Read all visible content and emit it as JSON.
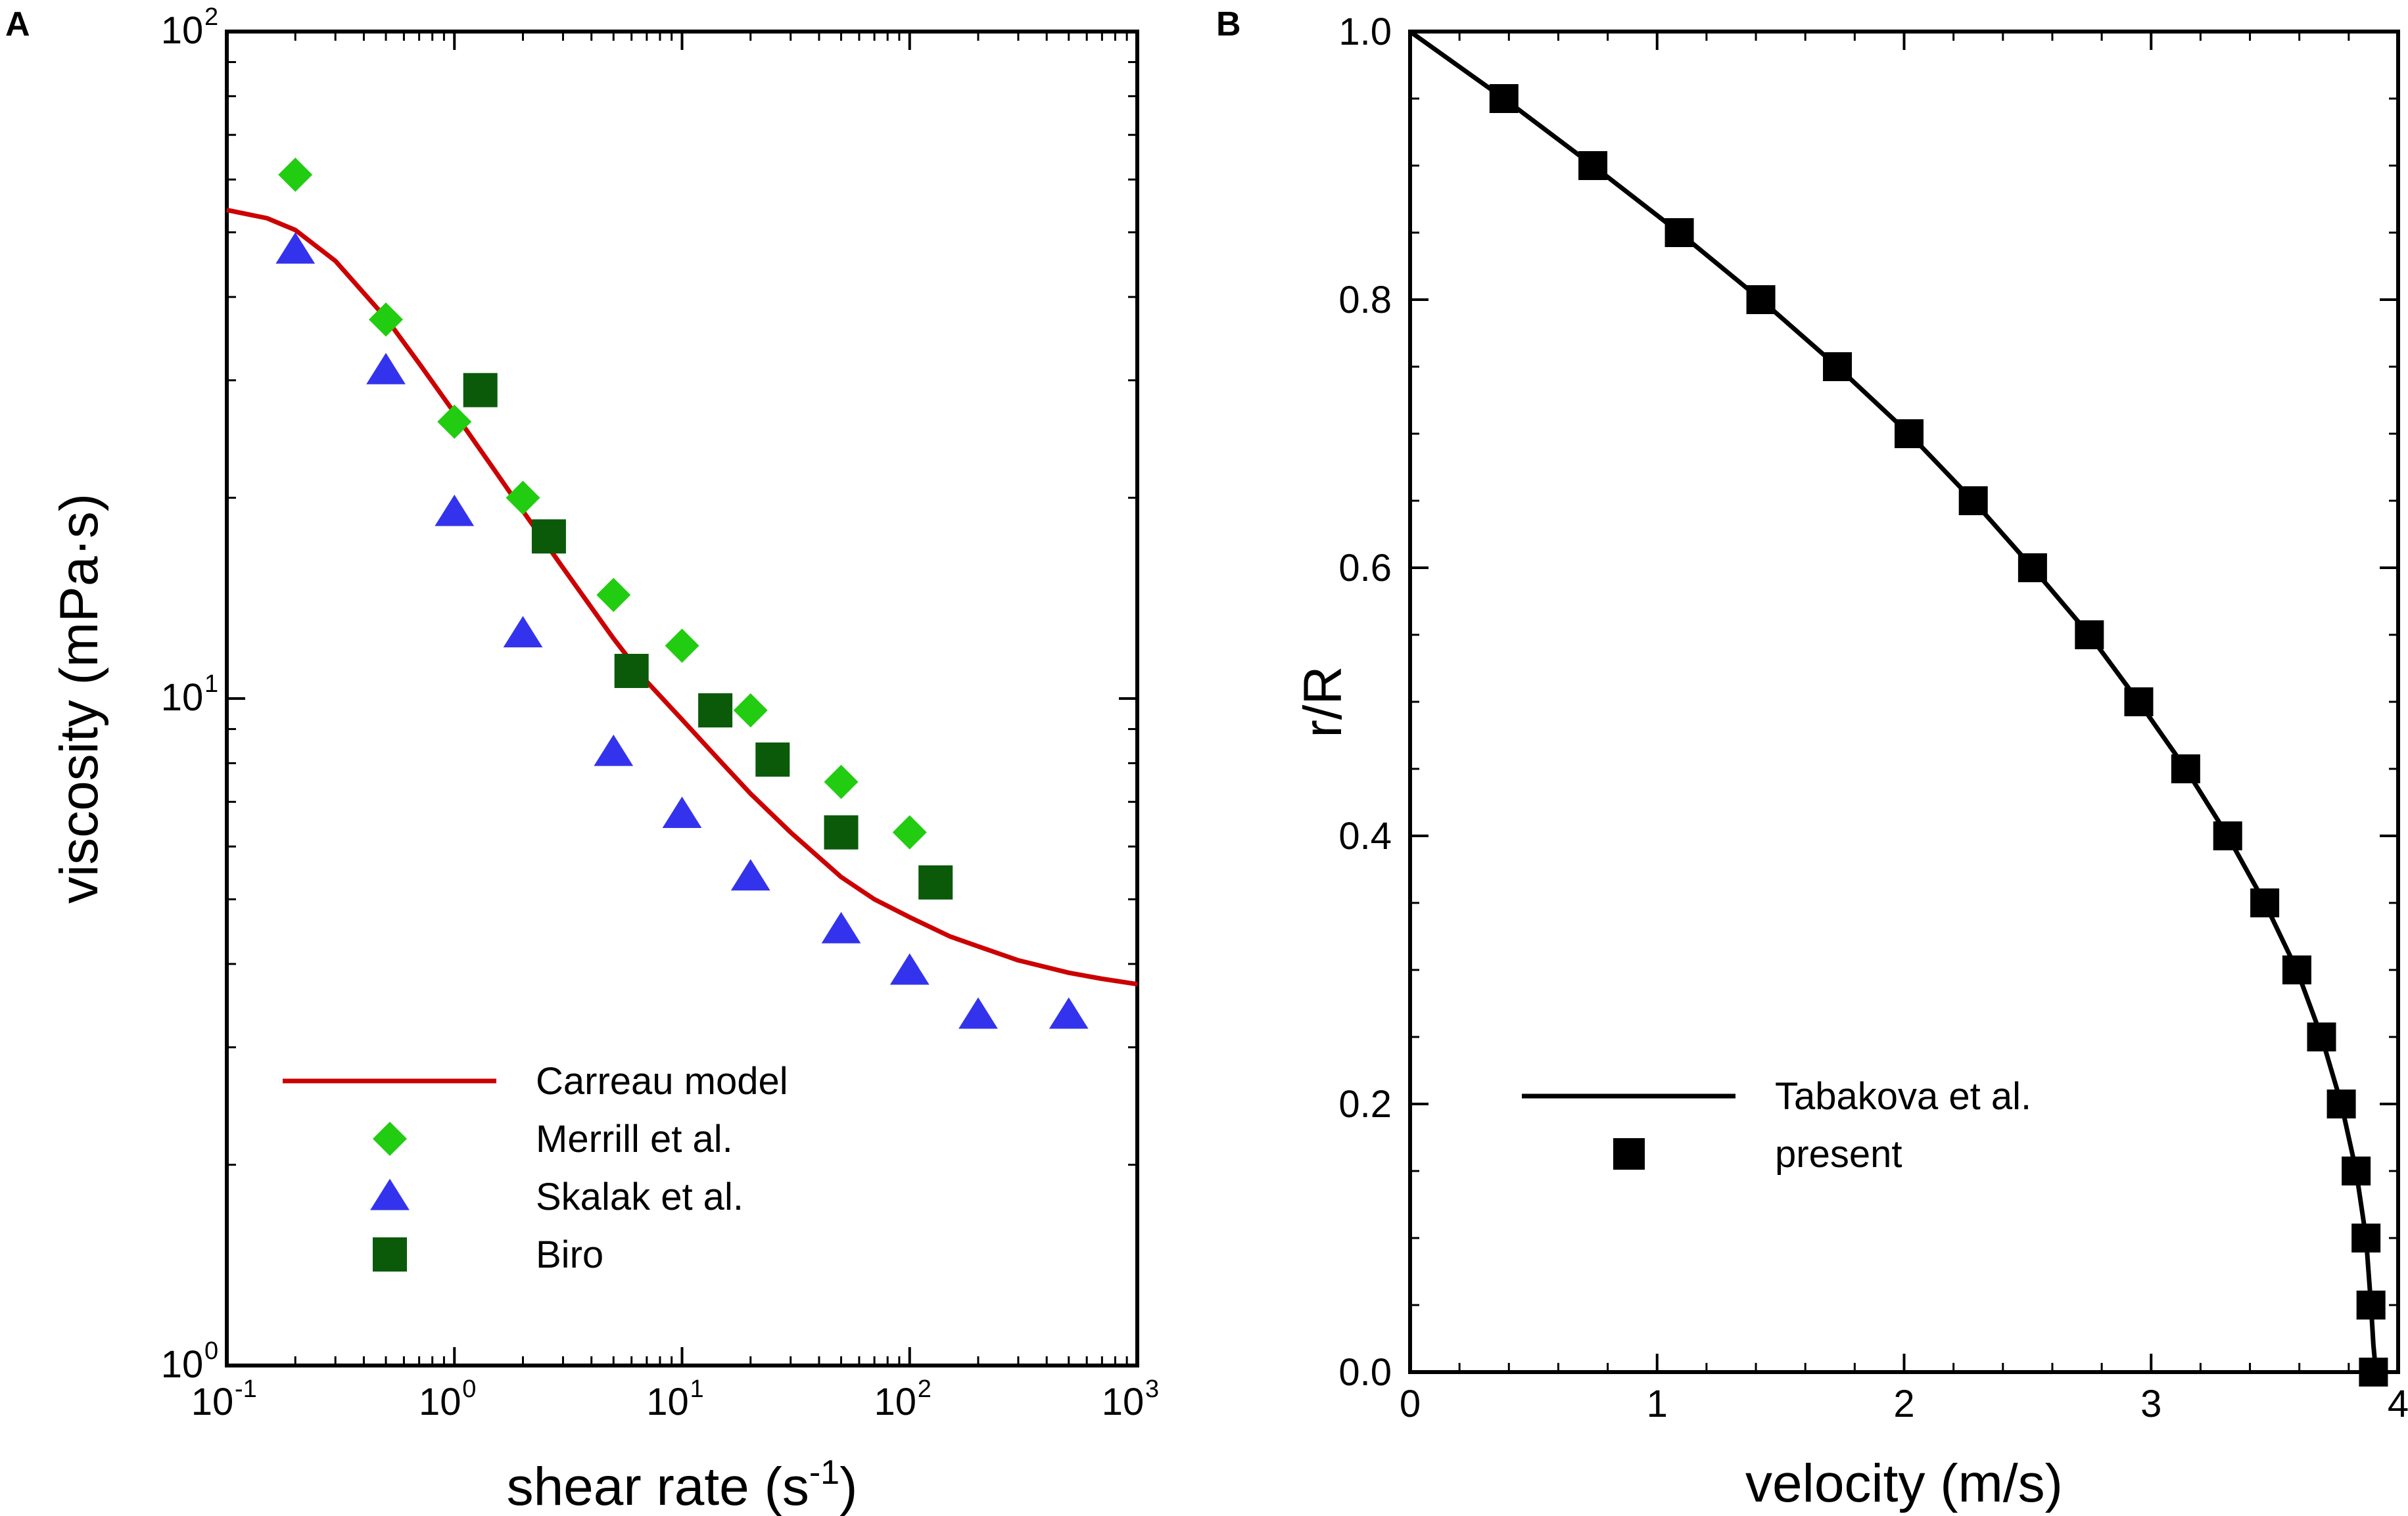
{
  "panels": {
    "a_label": "A",
    "b_label": "B"
  },
  "chart_data": [
    {
      "type": "scatter",
      "panel": "A",
      "xscale": "log",
      "yscale": "log",
      "xlim": [
        0.1,
        1000
      ],
      "ylim": [
        1,
        100
      ],
      "xlabel": "shear rate (s",
      "xlabel_sup": "-1",
      "xlabel_suffix": ")",
      "ylabel": "viscosity (mPa·s)",
      "xticks": [
        {
          "base": "10",
          "exp": "-1",
          "value": 0.1
        },
        {
          "base": "10",
          "exp": "0",
          "value": 1
        },
        {
          "base": "10",
          "exp": "1",
          "value": 10
        },
        {
          "base": "10",
          "exp": "2",
          "value": 100
        },
        {
          "base": "10",
          "exp": "3",
          "value": 1000
        }
      ],
      "yticks": [
        {
          "base": "10",
          "exp": "0",
          "value": 1
        },
        {
          "base": "10",
          "exp": "1",
          "value": 10
        },
        {
          "base": "10",
          "exp": "2",
          "value": 100
        }
      ],
      "legend_position": "bottom-left",
      "series": [
        {
          "name": "Carreau model",
          "kind": "line",
          "color": "#cc0000",
          "x": [
            0.1,
            0.15,
            0.2,
            0.3,
            0.5,
            0.7,
            1,
            1.5,
            2,
            3,
            5,
            7,
            10,
            15,
            20,
            30,
            50,
            70,
            100,
            150,
            200,
            300,
            500,
            700,
            1000
          ],
          "y": [
            54.0,
            52.5,
            50.4,
            45.3,
            37.2,
            31.8,
            26.8,
            22.0,
            19.1,
            15.7,
            12.3,
            10.6,
            9.3,
            8.0,
            7.2,
            6.3,
            5.4,
            5.0,
            4.7,
            4.4,
            4.25,
            4.05,
            3.88,
            3.8,
            3.73
          ]
        },
        {
          "name": "Merrill et al.",
          "kind": "marker",
          "marker": "diamond",
          "color": "#22cc11",
          "x": [
            0.2,
            0.5,
            1,
            2,
            5,
            10,
            20,
            50,
            100
          ],
          "y": [
            61,
            37,
            26,
            20,
            14.3,
            12.0,
            9.6,
            7.5,
            6.3
          ]
        },
        {
          "name": "Skalak et al.",
          "kind": "marker",
          "marker": "triangle",
          "color": "#3333ee",
          "x": [
            0.2,
            0.5,
            1,
            2,
            5,
            10,
            20,
            50,
            100,
            200,
            500
          ],
          "y": [
            47,
            31,
            19,
            12.5,
            8.3,
            6.7,
            5.4,
            4.5,
            3.9,
            3.35,
            3.35
          ]
        },
        {
          "name": "Biro",
          "kind": "marker",
          "marker": "square",
          "color": "#0a5a0a",
          "x": [
            1.3,
            2.6,
            6,
            14,
            25,
            50,
            130
          ],
          "y": [
            29,
            17.5,
            11.0,
            9.6,
            8.1,
            6.3,
            5.3
          ]
        }
      ]
    },
    {
      "type": "line",
      "panel": "B",
      "xlim": [
        0,
        4
      ],
      "ylim": [
        0,
        1
      ],
      "xlabel": "velocity (m/s)",
      "ylabel": "r/R",
      "xticks": [
        "0",
        "1",
        "2",
        "3",
        "4"
      ],
      "yticks": [
        "0.0",
        "0.2",
        "0.4",
        "0.6",
        "0.8",
        "1.0"
      ],
      "legend_position": "center-left",
      "series": [
        {
          "name": "Tabakova et al.",
          "kind": "line",
          "color": "#000000",
          "x": [
            0,
            0.38,
            0.74,
            1.09,
            1.42,
            1.73,
            2.02,
            2.28,
            2.52,
            2.75,
            2.95,
            3.14,
            3.31,
            3.46,
            3.59,
            3.69,
            3.77,
            3.83,
            3.87,
            3.89,
            3.9,
            3.91
          ],
          "y": [
            1.0,
            0.95,
            0.9,
            0.85,
            0.8,
            0.75,
            0.7,
            0.65,
            0.6,
            0.55,
            0.5,
            0.45,
            0.4,
            0.35,
            0.3,
            0.25,
            0.2,
            0.15,
            0.1,
            0.05,
            0.02,
            0.0
          ]
        },
        {
          "name": "present",
          "kind": "marker",
          "marker": "square",
          "color": "#000000",
          "x": [
            0.38,
            0.74,
            1.09,
            1.42,
            1.73,
            2.02,
            2.28,
            2.52,
            2.75,
            2.95,
            3.14,
            3.31,
            3.46,
            3.59,
            3.69,
            3.77,
            3.83,
            3.87,
            3.89,
            3.9
          ],
          "y": [
            0.95,
            0.9,
            0.85,
            0.8,
            0.75,
            0.7,
            0.65,
            0.6,
            0.55,
            0.5,
            0.45,
            0.4,
            0.35,
            0.3,
            0.25,
            0.2,
            0.15,
            0.1,
            0.05,
            0.0
          ]
        }
      ]
    }
  ]
}
